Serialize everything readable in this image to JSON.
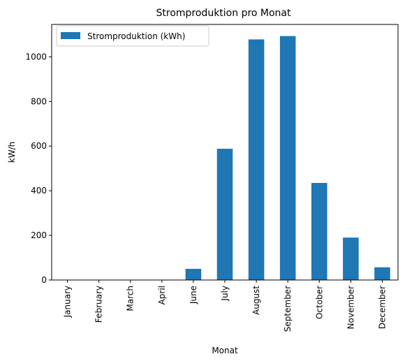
{
  "chart_data": {
    "type": "bar",
    "title": "Stromproduktion pro Monat",
    "xlabel": "Monat",
    "ylabel": "kW/h",
    "categories": [
      "January",
      "February",
      "March",
      "April",
      "June",
      "July",
      "August",
      "September",
      "October",
      "November",
      "December"
    ],
    "series": [
      {
        "name": "Stromproduktion (kWh)",
        "color": "#1f77b4",
        "values": [
          0,
          0,
          0,
          0,
          50,
          588,
          1078,
          1093,
          435,
          190,
          57
        ]
      }
    ],
    "ylim": [
      0,
      1145
    ],
    "yticks": [
      0,
      200,
      400,
      600,
      800,
      1000
    ],
    "grid": false,
    "legend_position": "top-left"
  }
}
